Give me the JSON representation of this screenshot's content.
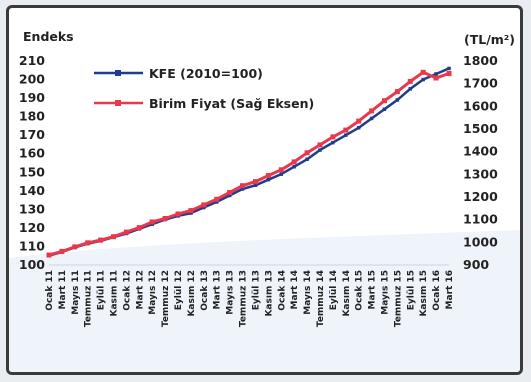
{
  "chart_data": {
    "type": "line",
    "left_axis_title": "Endeks",
    "right_axis_title": "(TL/m²)",
    "ylim_left": [
      100,
      210
    ],
    "ylim_right": [
      900,
      1800
    ],
    "yticks_left": [
      100,
      110,
      120,
      130,
      140,
      150,
      160,
      170,
      180,
      190,
      200,
      210
    ],
    "yticks_right": [
      900,
      1000,
      1100,
      1200,
      1300,
      1400,
      1500,
      1600,
      1700,
      1800
    ],
    "categories": [
      "Ocak 11",
      "Mart 11",
      "Mayıs 11",
      "Temmuz 11",
      "Eylül 11",
      "Kasım 11",
      "Ocak 12",
      "Mart 12",
      "Mayıs 12",
      "Temmuz 12",
      "Eylül 12",
      "Kasım 12",
      "Ocak 13",
      "Mart 13",
      "Mayıs 13",
      "Temmuz 13",
      "Eylül 13",
      "Kasım 13",
      "Ocak 14",
      "Mart 14",
      "Mayıs 14",
      "Temmuz 14",
      "Eylül 14",
      "Kasım 14",
      "Ocak 15",
      "Mart 15",
      "Mayıs 15",
      "Temmuz 15",
      "Eylül 15",
      "Kasım 15",
      "Ocak 16",
      "Mart 16"
    ],
    "series": [
      {
        "name": "KFE (2010=100)",
        "axis": "left",
        "color": "#1f3d8a",
        "values": [
          105,
          107,
          109.5,
          111.5,
          113,
          115,
          117,
          119.5,
          122,
          124.5,
          126.5,
          128,
          131,
          134,
          137.5,
          141,
          143,
          146,
          149,
          153,
          157,
          162,
          166,
          170,
          174,
          179,
          184,
          189,
          195,
          200,
          203,
          206
        ]
      },
      {
        "name": "Birim Fiyat (Sağ Eksen)",
        "axis": "right",
        "color": "#e8394c",
        "values": [
          944,
          960,
          980,
          998,
          1010,
          1025,
          1045,
          1065,
          1090,
          1105,
          1125,
          1140,
          1165,
          1190,
          1220,
          1250,
          1268,
          1295,
          1320,
          1355,
          1395,
          1430,
          1465,
          1495,
          1535,
          1580,
          1625,
          1665,
          1710,
          1750,
          1725,
          1745
        ]
      }
    ],
    "grid": false,
    "legend_position": "top-left"
  }
}
